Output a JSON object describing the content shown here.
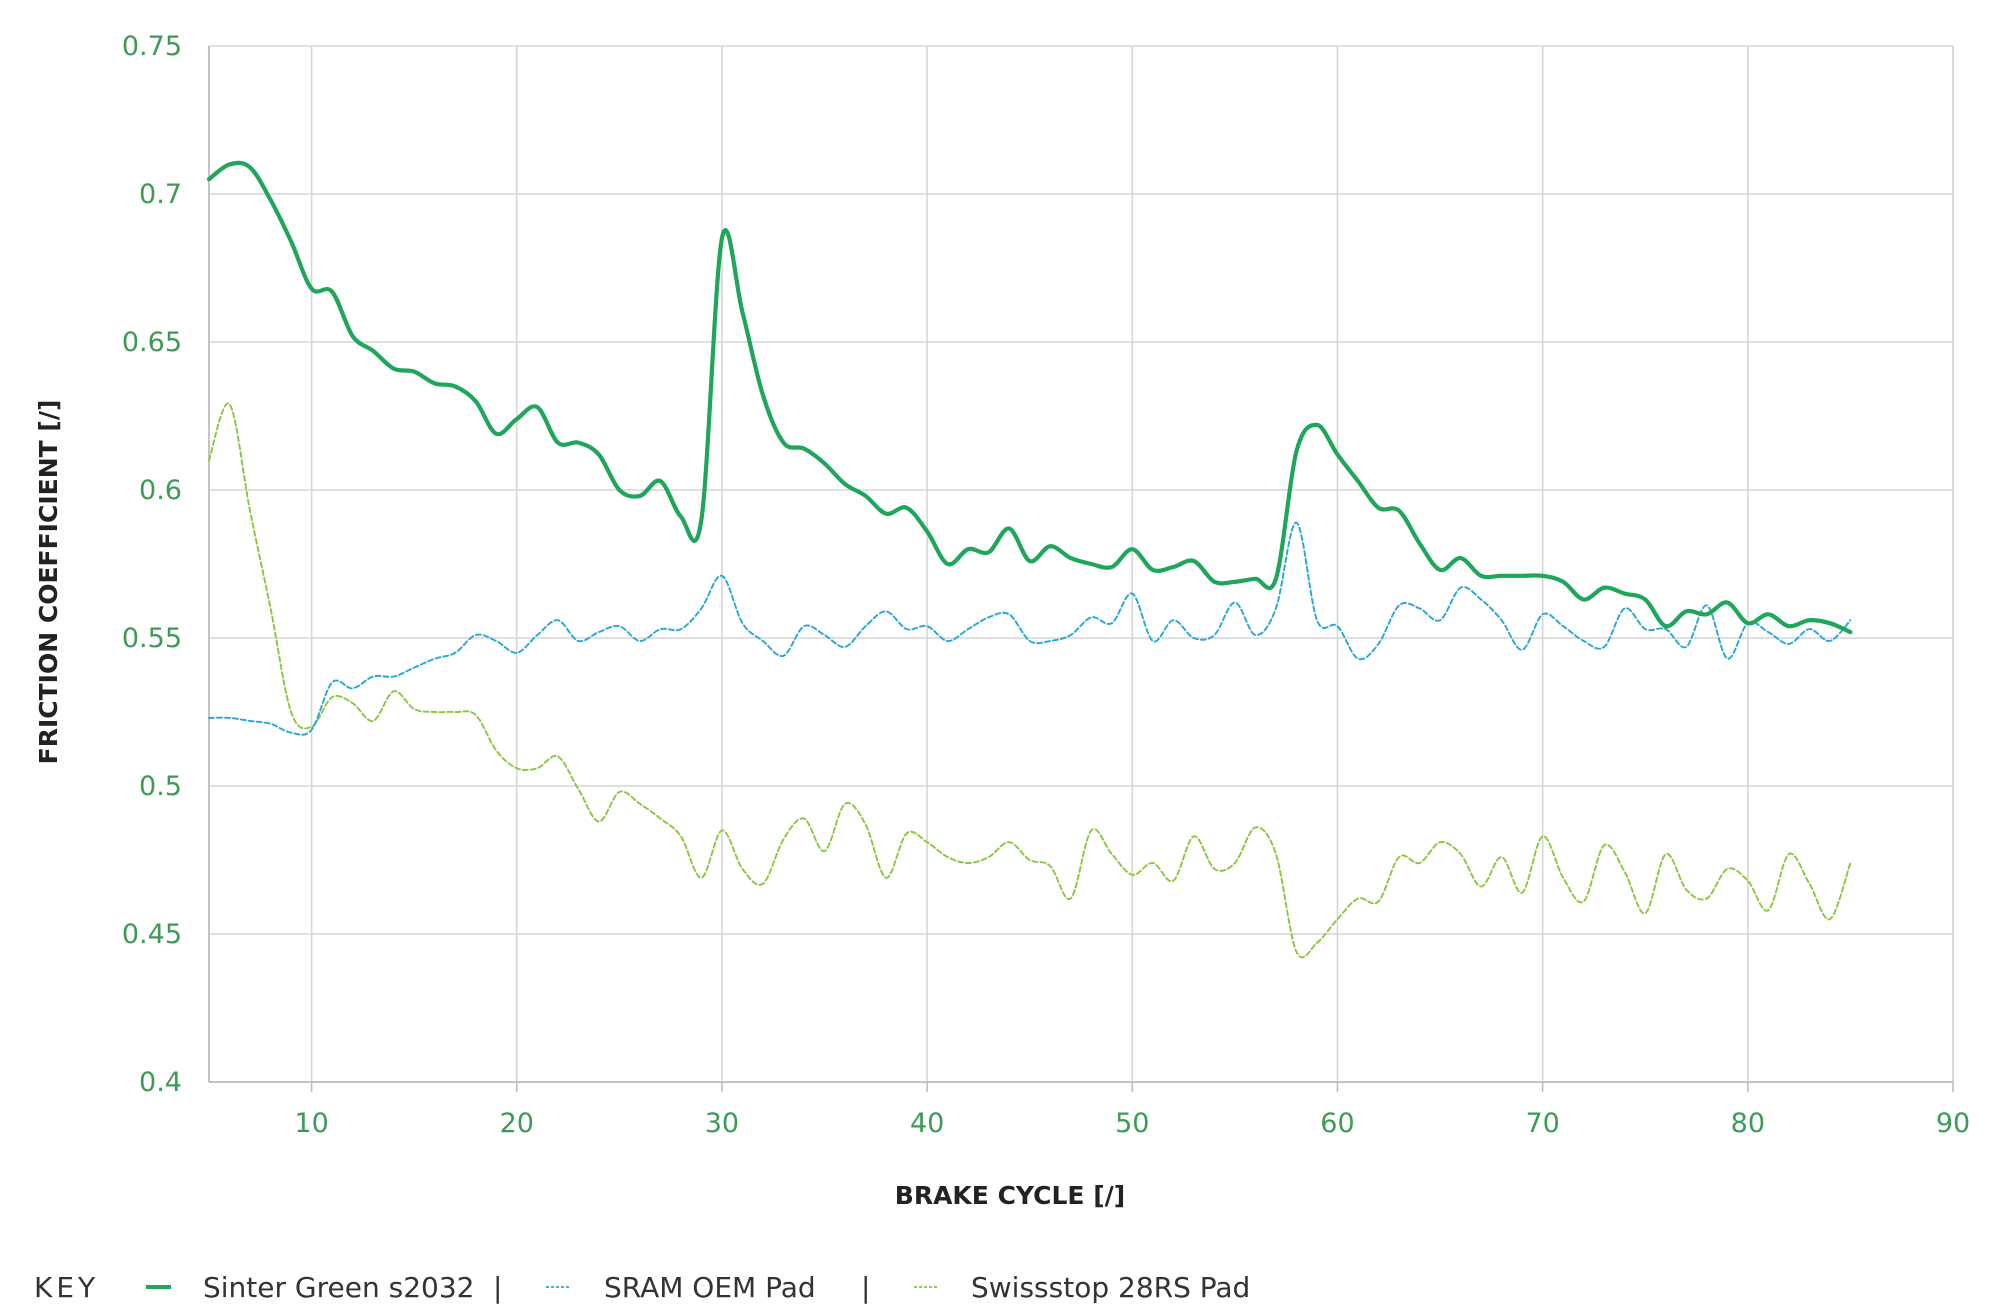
{
  "chart_data": {
    "type": "line",
    "title": "",
    "xlabel": "BRAKE CYCLE [/]",
    "ylabel": "FRICTION COEFFICIENT  [/]",
    "xlim": [
      5,
      90
    ],
    "ylim": [
      0.4,
      0.75
    ],
    "xticks": [
      10,
      20,
      30,
      40,
      50,
      60,
      70,
      80,
      90
    ],
    "yticks": [
      0.4,
      0.45,
      0.5,
      0.55,
      0.6,
      0.65,
      0.7,
      0.75
    ],
    "xtick_labels": [
      "10",
      "20",
      "30",
      "40",
      "50",
      "60",
      "70",
      "80",
      "90"
    ],
    "ytick_labels": [
      "0.4",
      "0.45",
      "0.5",
      "0.55",
      "0.6",
      "0.65",
      "0.7",
      "0.75"
    ],
    "grid": true,
    "legend": {
      "position": "bottom-left",
      "title": "KEY",
      "separator": "|"
    },
    "series": [
      {
        "name": "Sinter Green s2032",
        "color": "#1fa65a",
        "style": "solid",
        "x": [
          5,
          6,
          7,
          8,
          9,
          10,
          11,
          12,
          13,
          14,
          15,
          16,
          17,
          18,
          19,
          20,
          21,
          22,
          23,
          24,
          25,
          26,
          27,
          28,
          29,
          30,
          31,
          32,
          33,
          34,
          35,
          36,
          37,
          38,
          39,
          40,
          41,
          42,
          43,
          44,
          45,
          46,
          47,
          48,
          49,
          50,
          51,
          52,
          53,
          54,
          55,
          56,
          57,
          58,
          59,
          60,
          61,
          62,
          63,
          64,
          65,
          66,
          67,
          68,
          69,
          70,
          71,
          72,
          73,
          74,
          75,
          76,
          77,
          78,
          79,
          80,
          81,
          82,
          83,
          84,
          85
        ],
        "y": [
          0.705,
          0.71,
          0.709,
          0.698,
          0.684,
          0.668,
          0.667,
          0.652,
          0.647,
          0.641,
          0.64,
          0.636,
          0.635,
          0.63,
          0.619,
          0.624,
          0.628,
          0.616,
          0.616,
          0.612,
          0.6,
          0.598,
          0.603,
          0.591,
          0.59,
          0.685,
          0.66,
          0.632,
          0.616,
          0.614,
          0.609,
          0.602,
          0.598,
          0.592,
          0.594,
          0.586,
          0.575,
          0.58,
          0.579,
          0.587,
          0.576,
          0.581,
          0.577,
          0.575,
          0.574,
          0.58,
          0.573,
          0.574,
          0.576,
          0.569,
          0.569,
          0.57,
          0.57,
          0.613,
          0.622,
          0.612,
          0.603,
          0.594,
          0.593,
          0.582,
          0.573,
          0.577,
          0.571,
          0.571,
          0.571,
          0.571,
          0.569,
          0.563,
          0.567,
          0.565,
          0.563,
          0.554,
          0.559,
          0.558,
          0.562,
          0.555,
          0.558,
          0.554,
          0.556,
          0.555,
          0.552
        ]
      },
      {
        "name": "SRAM OEM Pad",
        "color": "#28a6d6",
        "style": "dashed",
        "x": [
          5,
          6,
          7,
          8,
          9,
          10,
          11,
          12,
          13,
          14,
          15,
          16,
          17,
          18,
          19,
          20,
          21,
          22,
          23,
          24,
          25,
          26,
          27,
          28,
          29,
          30,
          31,
          32,
          33,
          34,
          35,
          36,
          37,
          38,
          39,
          40,
          41,
          42,
          43,
          44,
          45,
          46,
          47,
          48,
          49,
          50,
          51,
          52,
          53,
          54,
          55,
          56,
          57,
          58,
          59,
          60,
          61,
          62,
          63,
          64,
          65,
          66,
          67,
          68,
          69,
          70,
          71,
          72,
          73,
          74,
          75,
          76,
          77,
          78,
          79,
          80,
          81,
          82,
          83,
          84,
          85
        ],
        "y": [
          0.523,
          0.523,
          0.522,
          0.521,
          0.518,
          0.519,
          0.535,
          0.533,
          0.537,
          0.537,
          0.54,
          0.543,
          0.545,
          0.551,
          0.549,
          0.545,
          0.551,
          0.556,
          0.549,
          0.552,
          0.554,
          0.549,
          0.553,
          0.553,
          0.56,
          0.571,
          0.555,
          0.549,
          0.544,
          0.554,
          0.551,
          0.547,
          0.554,
          0.559,
          0.553,
          0.554,
          0.549,
          0.553,
          0.557,
          0.558,
          0.549,
          0.549,
          0.551,
          0.557,
          0.555,
          0.565,
          0.549,
          0.556,
          0.55,
          0.551,
          0.562,
          0.551,
          0.56,
          0.589,
          0.556,
          0.554,
          0.543,
          0.548,
          0.561,
          0.56,
          0.556,
          0.567,
          0.563,
          0.556,
          0.546,
          0.558,
          0.554,
          0.549,
          0.547,
          0.56,
          0.553,
          0.553,
          0.547,
          0.561,
          0.543,
          0.555,
          0.552,
          0.548,
          0.553,
          0.549,
          0.556
        ]
      },
      {
        "name": "Swissstop 28RS Pad",
        "color": "#8cc63f",
        "style": "dashed",
        "x": [
          5,
          6,
          7,
          8,
          9,
          10,
          11,
          12,
          13,
          14,
          15,
          16,
          17,
          18,
          19,
          20,
          21,
          22,
          23,
          24,
          25,
          26,
          27,
          28,
          29,
          30,
          31,
          32,
          33,
          34,
          35,
          36,
          37,
          38,
          39,
          40,
          41,
          42,
          43,
          44,
          45,
          46,
          47,
          48,
          49,
          50,
          51,
          52,
          53,
          54,
          55,
          56,
          57,
          58,
          59,
          60,
          61,
          62,
          63,
          64,
          65,
          66,
          67,
          68,
          69,
          70,
          71,
          72,
          73,
          74,
          75,
          76,
          77,
          78,
          79,
          80,
          81,
          82,
          83,
          84,
          85
        ],
        "y": [
          0.61,
          0.629,
          0.593,
          0.56,
          0.525,
          0.52,
          0.53,
          0.528,
          0.522,
          0.532,
          0.526,
          0.525,
          0.525,
          0.524,
          0.512,
          0.506,
          0.506,
          0.51,
          0.499,
          0.488,
          0.498,
          0.494,
          0.489,
          0.483,
          0.469,
          0.485,
          0.472,
          0.467,
          0.482,
          0.489,
          0.478,
          0.494,
          0.487,
          0.469,
          0.484,
          0.481,
          0.476,
          0.474,
          0.476,
          0.481,
          0.475,
          0.473,
          0.462,
          0.485,
          0.477,
          0.47,
          0.474,
          0.468,
          0.483,
          0.472,
          0.474,
          0.486,
          0.477,
          0.444,
          0.447,
          0.455,
          0.462,
          0.461,
          0.476,
          0.474,
          0.481,
          0.477,
          0.466,
          0.476,
          0.464,
          0.483,
          0.469,
          0.461,
          0.48,
          0.471,
          0.457,
          0.477,
          0.465,
          0.462,
          0.472,
          0.468,
          0.458,
          0.477,
          0.467,
          0.455,
          0.474
        ]
      }
    ]
  }
}
